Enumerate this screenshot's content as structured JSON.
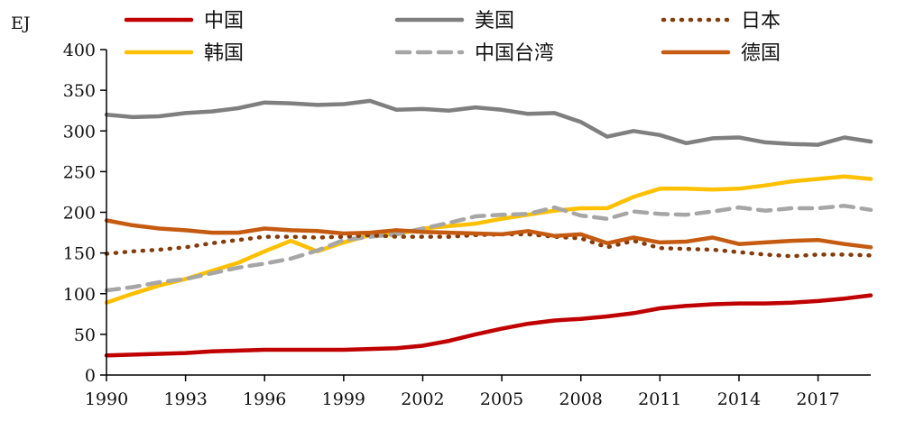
{
  "chart_data": {
    "type": "line",
    "ylabel": "EJ",
    "ylim": [
      0,
      400
    ],
    "yticks": [
      0,
      50,
      100,
      150,
      200,
      250,
      300,
      350,
      400
    ],
    "xlim": [
      1990,
      2019
    ],
    "xticks": [
      1990,
      1993,
      1996,
      1999,
      2002,
      2005,
      2008,
      2011,
      2014,
      2017
    ],
    "x": [
      1990,
      1991,
      1992,
      1993,
      1994,
      1995,
      1996,
      1997,
      1998,
      1999,
      2000,
      2001,
      2002,
      2003,
      2004,
      2005,
      2006,
      2007,
      2008,
      2009,
      2010,
      2011,
      2012,
      2013,
      2014,
      2015,
      2016,
      2017,
      2018,
      2019
    ],
    "grid": false,
    "legend_position": "top",
    "series": [
      {
        "name": "中国",
        "color": "#c00000",
        "style": "solid",
        "values": [
          24,
          25,
          26,
          27,
          29,
          30,
          31,
          31,
          31,
          31,
          32,
          33,
          36,
          42,
          50,
          57,
          63,
          67,
          69,
          72,
          76,
          82,
          85,
          87,
          88,
          88,
          89,
          91,
          94,
          98
        ]
      },
      {
        "name": "美国",
        "color": "#7f7f7f",
        "style": "solid",
        "values": [
          320,
          317,
          318,
          322,
          324,
          328,
          335,
          334,
          332,
          333,
          337,
          326,
          327,
          325,
          329,
          326,
          321,
          322,
          311,
          293,
          300,
          295,
          285,
          291,
          292,
          286,
          284,
          283,
          292,
          287
        ]
      },
      {
        "name": "日本",
        "color": "#843c0c",
        "style": "dotted",
        "values": [
          149,
          152,
          154,
          157,
          162,
          166,
          170,
          170,
          169,
          170,
          172,
          170,
          170,
          170,
          172,
          173,
          173,
          170,
          168,
          157,
          165,
          156,
          155,
          154,
          151,
          148,
          146,
          148,
          148,
          147
        ]
      },
      {
        "name": "韩国",
        "color": "#ffc000",
        "style": "solid",
        "values": [
          89,
          100,
          110,
          118,
          128,
          138,
          152,
          165,
          152,
          163,
          172,
          173,
          180,
          183,
          186,
          192,
          197,
          202,
          205,
          205,
          219,
          229,
          229,
          228,
          229,
          233,
          238,
          241,
          244,
          241
        ]
      },
      {
        "name": "中国台湾",
        "color": "#a6a6a6",
        "style": "dashed",
        "values": [
          104,
          108,
          114,
          118,
          125,
          132,
          137,
          143,
          153,
          166,
          170,
          173,
          180,
          187,
          195,
          197,
          198,
          206,
          196,
          192,
          201,
          198,
          197,
          201,
          206,
          202,
          205,
          205,
          208,
          203
        ]
      },
      {
        "name": "德国",
        "color": "#c55a11",
        "style": "solid",
        "values": [
          190,
          184,
          180,
          178,
          175,
          175,
          180,
          178,
          177,
          174,
          175,
          178,
          176,
          175,
          174,
          173,
          177,
          171,
          173,
          162,
          169,
          163,
          164,
          169,
          161,
          163,
          165,
          166,
          161,
          157
        ]
      }
    ]
  }
}
